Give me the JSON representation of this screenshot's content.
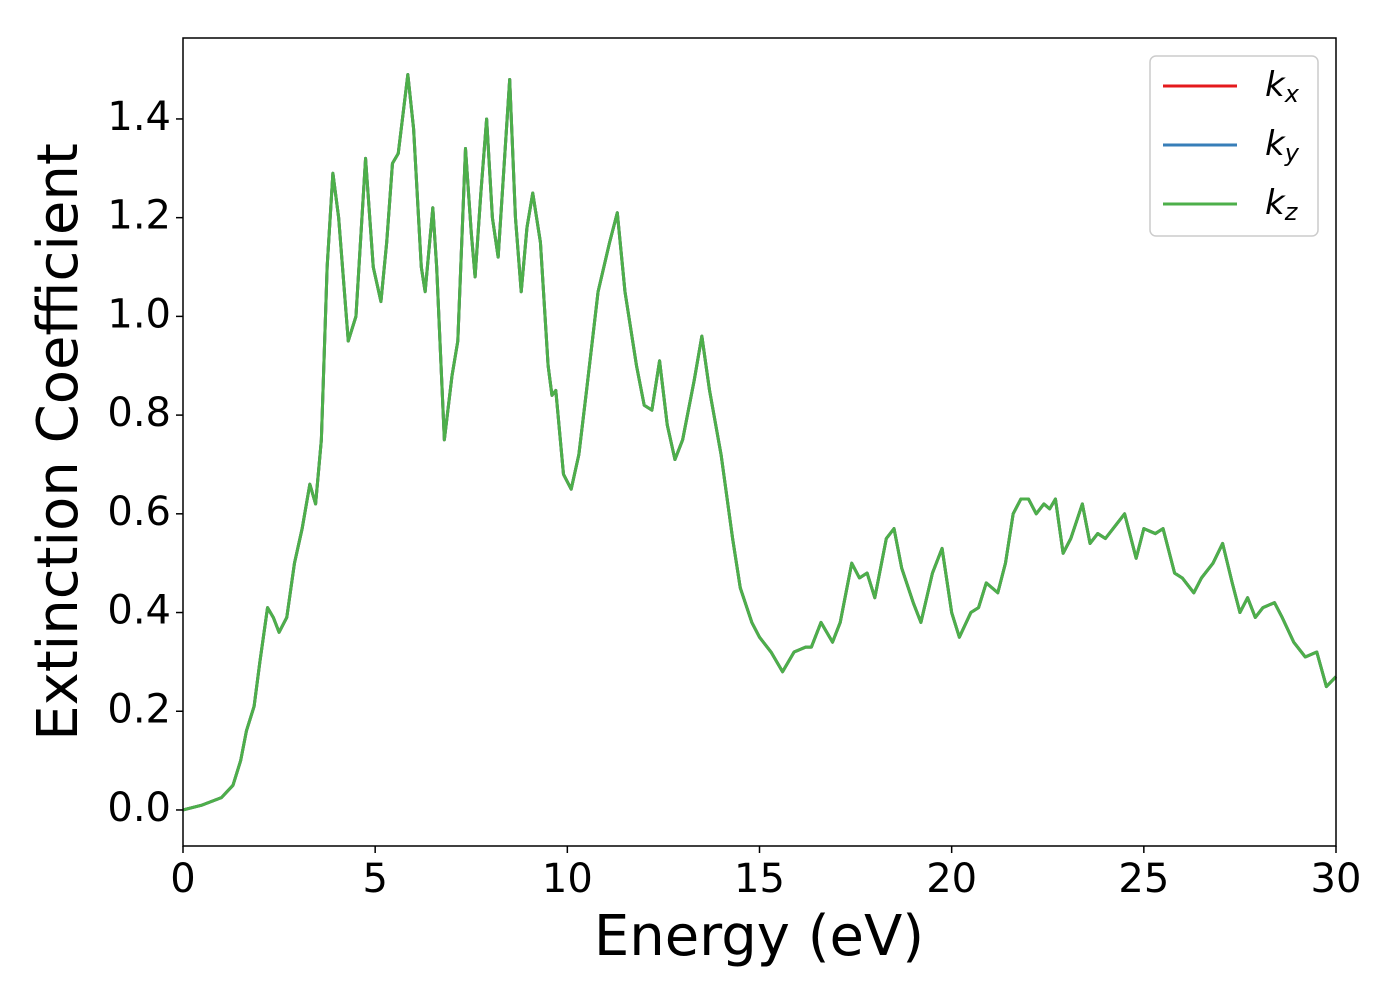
{
  "chart_data": {
    "type": "line",
    "xlabel": "Energy (eV)",
    "ylabel": "Extinction Coefficient",
    "x": [
      0,
      0.5,
      1.0,
      1.3,
      1.5,
      1.65,
      1.85,
      2.0,
      2.2,
      2.35,
      2.5,
      2.7,
      2.9,
      3.1,
      3.3,
      3.45,
      3.6,
      3.75,
      3.9,
      4.05,
      4.3,
      4.5,
      4.75,
      4.95,
      5.15,
      5.3,
      5.45,
      5.6,
      5.85,
      6.0,
      6.2,
      6.3,
      6.5,
      6.6,
      6.8,
      7.0,
      7.15,
      7.35,
      7.5,
      7.6,
      7.75,
      7.9,
      8.05,
      8.2,
      8.35,
      8.5,
      8.65,
      8.8,
      8.95,
      9.1,
      9.3,
      9.5,
      9.6,
      9.7,
      9.9,
      10.1,
      10.3,
      10.5,
      10.8,
      11.1,
      11.3,
      11.5,
      11.8,
      12.0,
      12.2,
      12.4,
      12.6,
      12.8,
      13.0,
      13.3,
      13.5,
      13.7,
      14.0,
      14.3,
      14.5,
      14.8,
      15.0,
      15.3,
      15.6,
      15.9,
      16.2,
      16.35,
      16.6,
      16.9,
      17.1,
      17.4,
      17.6,
      17.8,
      18.0,
      18.3,
      18.5,
      18.7,
      19.0,
      19.2,
      19.5,
      19.75,
      20.0,
      20.2,
      20.5,
      20.7,
      20.9,
      21.2,
      21.4,
      21.6,
      21.8,
      22.0,
      22.2,
      22.4,
      22.55,
      22.7,
      22.9,
      23.1,
      23.4,
      23.6,
      23.8,
      24.0,
      24.3,
      24.5,
      24.8,
      25.0,
      25.3,
      25.5,
      25.8,
      26.0,
      26.3,
      26.5,
      26.8,
      27.05,
      27.3,
      27.5,
      27.7,
      27.9,
      28.1,
      28.4,
      28.6,
      28.9,
      29.2,
      29.5,
      29.75,
      30.0
    ],
    "series": [
      {
        "name": "kx",
        "color": "#e41a1c",
        "values": [
          0,
          0.01,
          0.025,
          0.05,
          0.1,
          0.16,
          0.21,
          0.3,
          0.41,
          0.39,
          0.36,
          0.39,
          0.5,
          0.57,
          0.66,
          0.62,
          0.75,
          1.1,
          1.29,
          1.2,
          0.95,
          1.0,
          1.32,
          1.1,
          1.03,
          1.15,
          1.31,
          1.33,
          1.49,
          1.38,
          1.1,
          1.05,
          1.22,
          1.1,
          0.75,
          0.88,
          0.95,
          1.34,
          1.17,
          1.08,
          1.25,
          1.4,
          1.2,
          1.12,
          1.3,
          1.48,
          1.2,
          1.05,
          1.18,
          1.25,
          1.15,
          0.9,
          0.84,
          0.85,
          0.68,
          0.65,
          0.72,
          0.85,
          1.05,
          1.15,
          1.21,
          1.05,
          0.9,
          0.82,
          0.81,
          0.91,
          0.78,
          0.71,
          0.75,
          0.87,
          0.96,
          0.85,
          0.72,
          0.55,
          0.45,
          0.38,
          0.35,
          0.32,
          0.28,
          0.32,
          0.33,
          0.33,
          0.38,
          0.34,
          0.38,
          0.5,
          0.47,
          0.48,
          0.43,
          0.55,
          0.57,
          0.49,
          0.42,
          0.38,
          0.48,
          0.53,
          0.4,
          0.35,
          0.4,
          0.41,
          0.46,
          0.44,
          0.5,
          0.6,
          0.63,
          0.63,
          0.6,
          0.62,
          0.61,
          0.63,
          0.52,
          0.55,
          0.62,
          0.54,
          0.56,
          0.55,
          0.58,
          0.6,
          0.51,
          0.57,
          0.56,
          0.57,
          0.48,
          0.47,
          0.44,
          0.47,
          0.5,
          0.54,
          0.46,
          0.4,
          0.43,
          0.39,
          0.41,
          0.42,
          0.39,
          0.34,
          0.31,
          0.32,
          0.25,
          0.27
        ]
      },
      {
        "name": "ky",
        "color": "#377eb8",
        "values": [
          0,
          0.01,
          0.025,
          0.05,
          0.1,
          0.16,
          0.21,
          0.3,
          0.41,
          0.39,
          0.36,
          0.39,
          0.5,
          0.57,
          0.66,
          0.62,
          0.75,
          1.1,
          1.29,
          1.2,
          0.95,
          1.0,
          1.32,
          1.1,
          1.03,
          1.15,
          1.31,
          1.33,
          1.49,
          1.38,
          1.1,
          1.05,
          1.22,
          1.1,
          0.75,
          0.88,
          0.95,
          1.34,
          1.17,
          1.08,
          1.25,
          1.4,
          1.2,
          1.12,
          1.3,
          1.48,
          1.2,
          1.05,
          1.18,
          1.25,
          1.15,
          0.9,
          0.84,
          0.85,
          0.68,
          0.65,
          0.72,
          0.85,
          1.05,
          1.15,
          1.21,
          1.05,
          0.9,
          0.82,
          0.81,
          0.91,
          0.78,
          0.71,
          0.75,
          0.87,
          0.96,
          0.85,
          0.72,
          0.55,
          0.45,
          0.38,
          0.35,
          0.32,
          0.28,
          0.32,
          0.33,
          0.33,
          0.38,
          0.34,
          0.38,
          0.5,
          0.47,
          0.48,
          0.43,
          0.55,
          0.57,
          0.49,
          0.42,
          0.38,
          0.48,
          0.53,
          0.4,
          0.35,
          0.4,
          0.41,
          0.46,
          0.44,
          0.5,
          0.6,
          0.63,
          0.63,
          0.6,
          0.62,
          0.61,
          0.63,
          0.52,
          0.55,
          0.62,
          0.54,
          0.56,
          0.55,
          0.58,
          0.6,
          0.51,
          0.57,
          0.56,
          0.57,
          0.48,
          0.47,
          0.44,
          0.47,
          0.5,
          0.54,
          0.46,
          0.4,
          0.43,
          0.39,
          0.41,
          0.42,
          0.39,
          0.34,
          0.31,
          0.32,
          0.25,
          0.27
        ]
      },
      {
        "name": "kz",
        "color": "#4daf4a",
        "values": [
          0,
          0.01,
          0.025,
          0.05,
          0.1,
          0.16,
          0.21,
          0.3,
          0.41,
          0.39,
          0.36,
          0.39,
          0.5,
          0.57,
          0.66,
          0.62,
          0.75,
          1.1,
          1.29,
          1.2,
          0.95,
          1.0,
          1.32,
          1.1,
          1.03,
          1.15,
          1.31,
          1.33,
          1.49,
          1.38,
          1.1,
          1.05,
          1.22,
          1.1,
          0.75,
          0.88,
          0.95,
          1.34,
          1.17,
          1.08,
          1.25,
          1.4,
          1.2,
          1.12,
          1.3,
          1.48,
          1.2,
          1.05,
          1.18,
          1.25,
          1.15,
          0.9,
          0.84,
          0.85,
          0.68,
          0.65,
          0.72,
          0.85,
          1.05,
          1.15,
          1.21,
          1.05,
          0.9,
          0.82,
          0.81,
          0.91,
          0.78,
          0.71,
          0.75,
          0.87,
          0.96,
          0.85,
          0.72,
          0.55,
          0.45,
          0.38,
          0.35,
          0.32,
          0.28,
          0.32,
          0.33,
          0.33,
          0.38,
          0.34,
          0.38,
          0.5,
          0.47,
          0.48,
          0.43,
          0.55,
          0.57,
          0.49,
          0.42,
          0.38,
          0.48,
          0.53,
          0.4,
          0.35,
          0.4,
          0.41,
          0.46,
          0.44,
          0.5,
          0.6,
          0.63,
          0.63,
          0.6,
          0.62,
          0.61,
          0.63,
          0.52,
          0.55,
          0.62,
          0.54,
          0.56,
          0.55,
          0.58,
          0.6,
          0.51,
          0.57,
          0.56,
          0.57,
          0.48,
          0.47,
          0.44,
          0.47,
          0.5,
          0.54,
          0.46,
          0.4,
          0.43,
          0.39,
          0.41,
          0.42,
          0.39,
          0.34,
          0.31,
          0.32,
          0.25,
          0.27
        ]
      }
    ],
    "xlim": [
      0,
      30
    ],
    "xticks": [
      0,
      5,
      10,
      15,
      20,
      25,
      30
    ],
    "ylim": [
      -0.073,
      1.564
    ],
    "yticks": [
      {
        "value": 0,
        "label": "0.0"
      },
      0.2,
      0.4,
      0.6,
      0.8,
      {
        "value": 1,
        "label": "1.0"
      },
      1.2,
      1.4
    ],
    "grid": false,
    "legend": "upper right"
  }
}
